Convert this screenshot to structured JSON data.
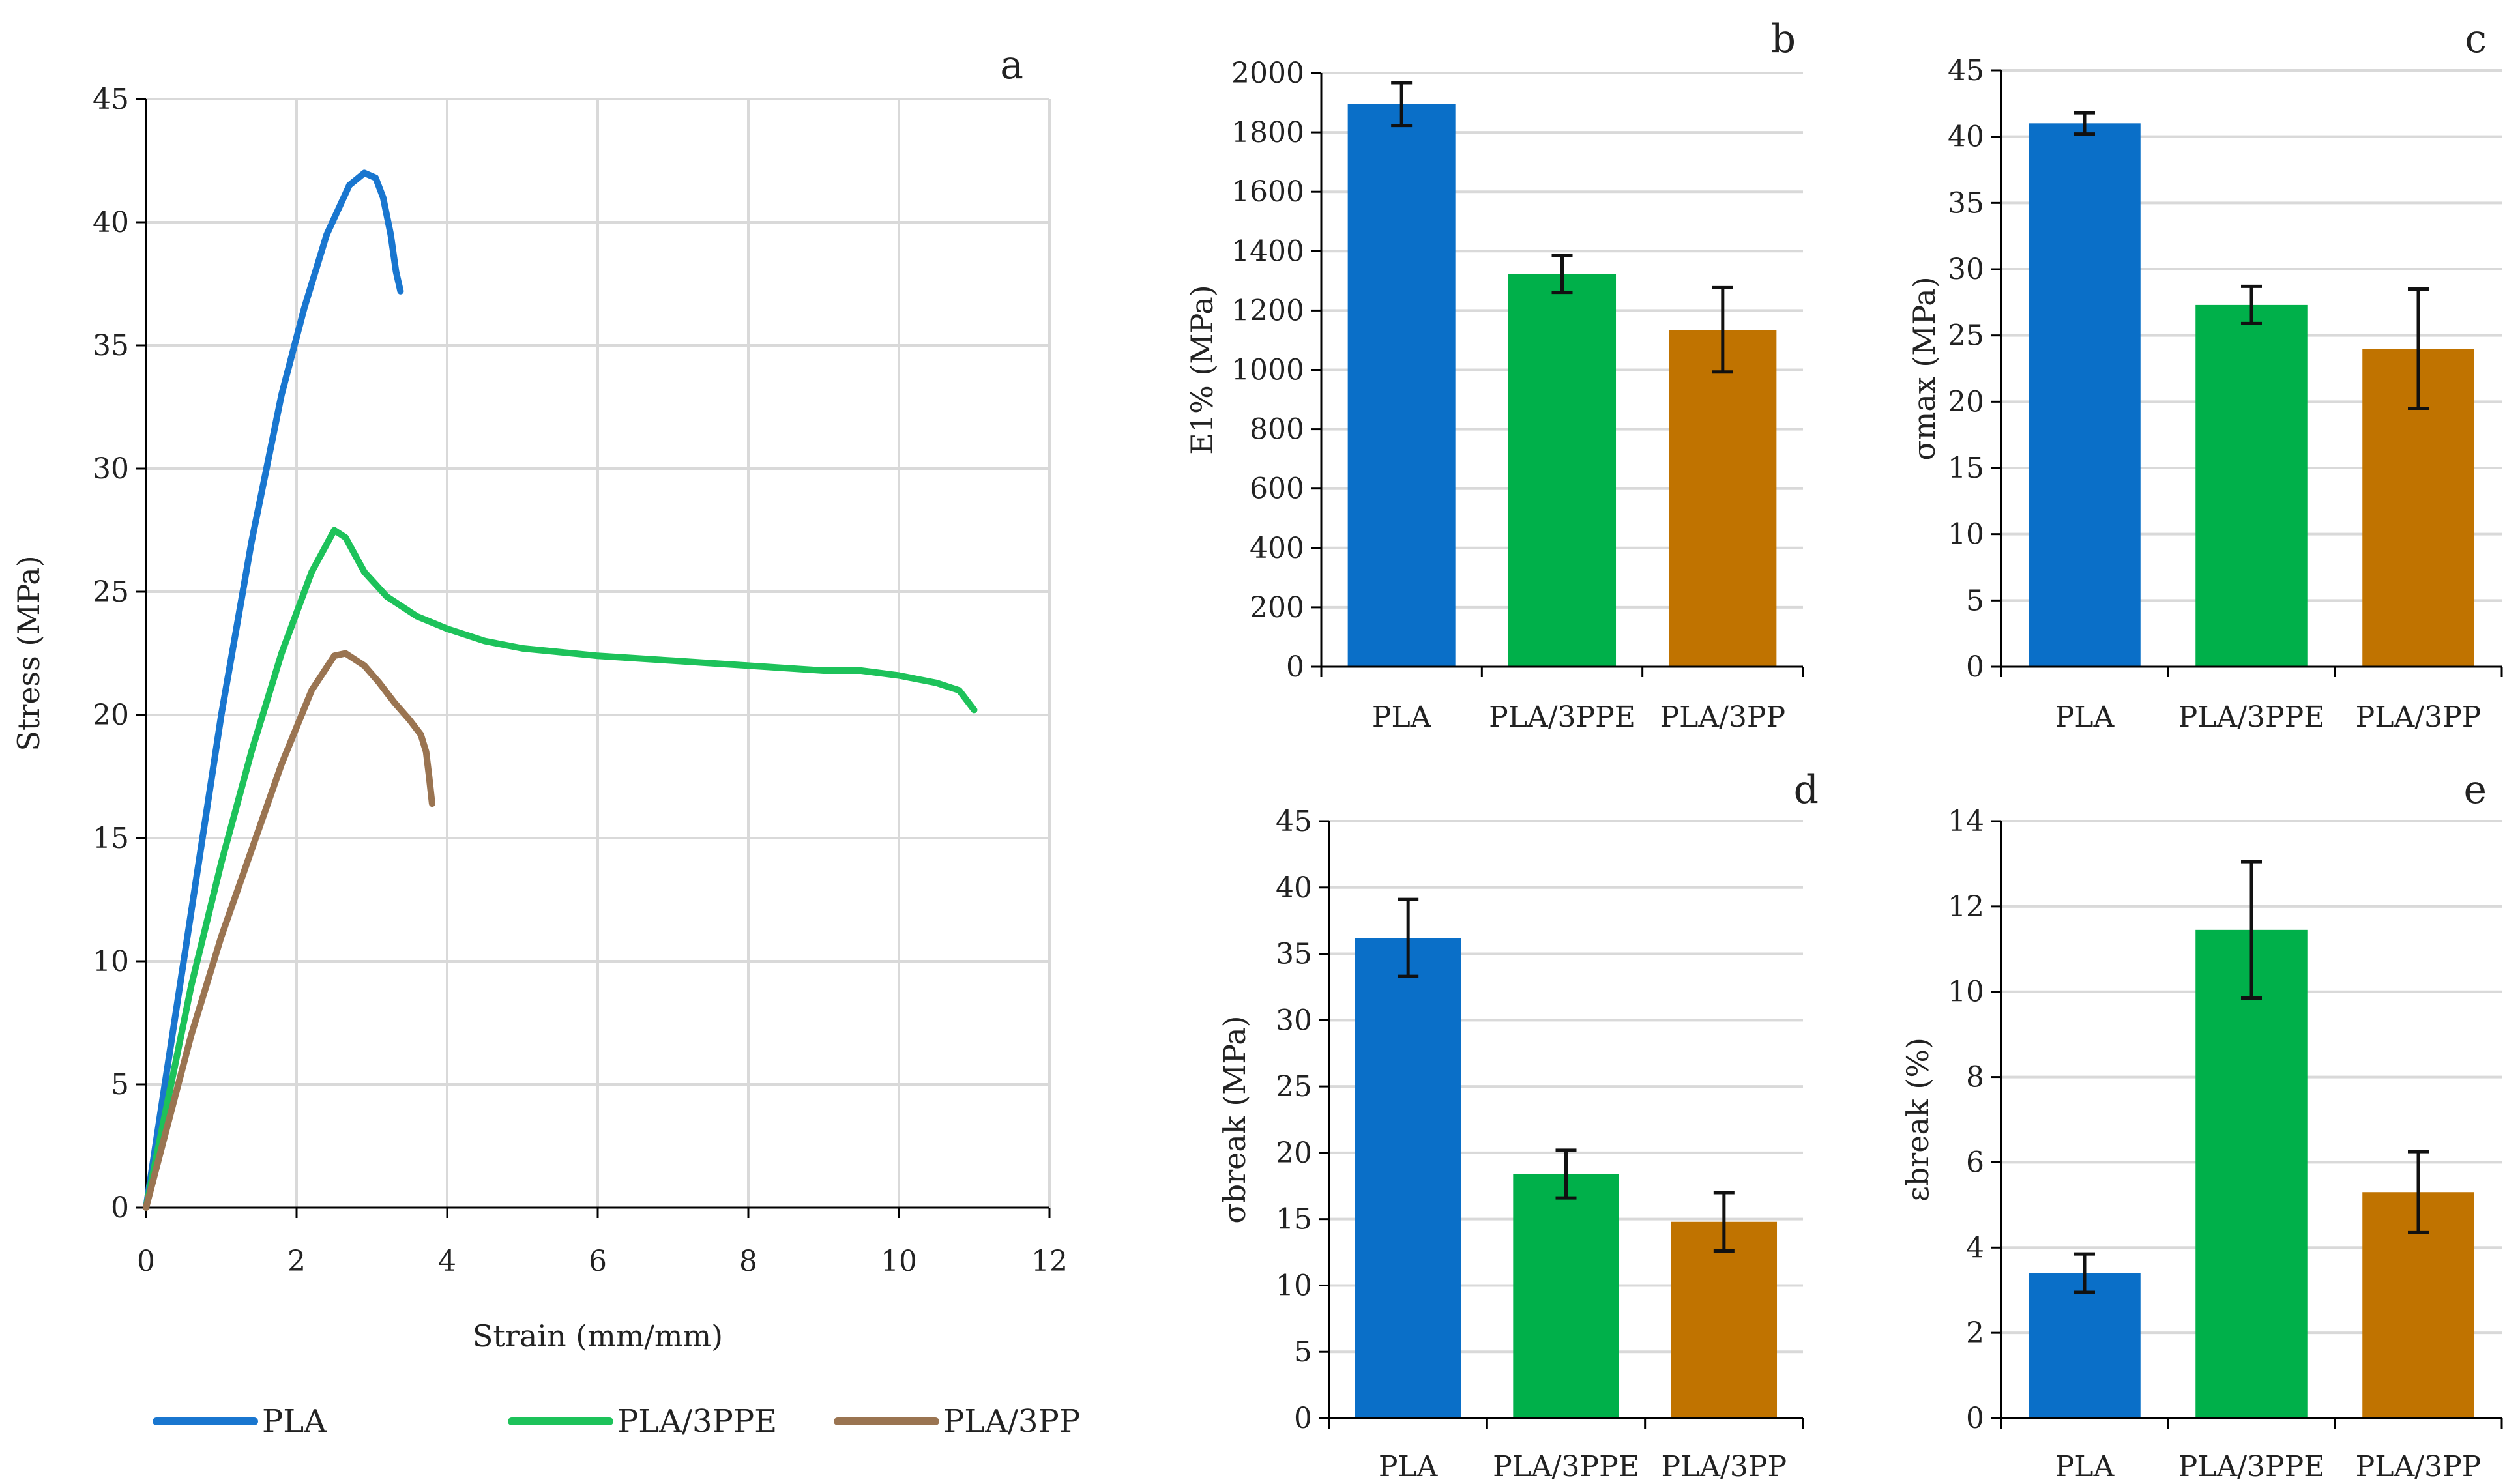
{
  "colors": {
    "pla": "#0A6FC8",
    "pla3ppe": "#00B04A",
    "pla3pp": "#C07300",
    "pla_curve": "#1976CF",
    "pla3ppe_curve": "#1DC25A",
    "pla3pp_curve": "#9A7451",
    "grid": "#D9D9D9",
    "axis": "#000000"
  },
  "chart_data": [
    {
      "panel": "a",
      "type": "line",
      "xlabel": "Strain (mm/mm)",
      "ylabel": "Stress (MPa)",
      "xlim": [
        0,
        12
      ],
      "ylim": [
        0,
        45
      ],
      "xticks": [
        "0",
        "2",
        "4",
        "6",
        "8",
        "10",
        "12"
      ],
      "yticks": [
        "0",
        "5",
        "10",
        "15",
        "20",
        "25",
        "30",
        "35",
        "40",
        "45"
      ],
      "grid": true,
      "legend_position": "bottom",
      "series": [
        {
          "name": "PLA",
          "color_key": "pla_curve",
          "x": [
            0,
            0.3,
            0.6,
            1.0,
            1.4,
            1.8,
            2.1,
            2.4,
            2.7,
            2.9,
            3.05,
            3.15,
            3.25,
            3.32,
            3.38
          ],
          "y": [
            0,
            6,
            12,
            20,
            27,
            33,
            36.5,
            39.5,
            41.5,
            42,
            41.8,
            41,
            39.5,
            38,
            37.2
          ]
        },
        {
          "name": "PLA/3PPE",
          "color_key": "pla3ppe_curve",
          "x": [
            0,
            0.3,
            0.6,
            1.0,
            1.4,
            1.8,
            2.2,
            2.5,
            2.65,
            2.9,
            3.2,
            3.6,
            4.0,
            4.5,
            5.0,
            6.0,
            7.0,
            8.0,
            9.0,
            9.5,
            10.0,
            10.5,
            10.8,
            11.0
          ],
          "y": [
            0,
            4.5,
            9,
            14,
            18.5,
            22.5,
            25.8,
            27.5,
            27.2,
            25.8,
            24.8,
            24.0,
            23.5,
            23.0,
            22.7,
            22.4,
            22.2,
            22.0,
            21.8,
            21.8,
            21.6,
            21.3,
            21.0,
            20.2
          ]
        },
        {
          "name": "PLA/3PP",
          "color_key": "pla3pp_curve",
          "x": [
            0,
            0.3,
            0.6,
            1.0,
            1.4,
            1.8,
            2.2,
            2.5,
            2.65,
            2.9,
            3.1,
            3.3,
            3.5,
            3.65,
            3.72,
            3.76,
            3.8
          ],
          "y": [
            0,
            3.5,
            7,
            11,
            14.5,
            18,
            21,
            22.4,
            22.5,
            22.0,
            21.3,
            20.5,
            19.8,
            19.2,
            18.5,
            17.5,
            16.4
          ]
        }
      ]
    },
    {
      "panel": "b",
      "type": "bar",
      "ylabel": "E1% (MPa)",
      "categories": [
        "PLA",
        "PLA/3PPE",
        "PLA/3PP"
      ],
      "values": [
        1895,
        1323,
        1135
      ],
      "errors": [
        72,
        62,
        142
      ],
      "color_keys": [
        "pla",
        "pla3ppe",
        "pla3pp"
      ],
      "ylim": [
        0,
        2000
      ],
      "yticks": [
        "0",
        "200",
        "400",
        "600",
        "800",
        "1000",
        "1200",
        "1400",
        "1600",
        "1800",
        "2000"
      ],
      "grid": true
    },
    {
      "panel": "c",
      "type": "bar",
      "ylabel": "σmax (MPa)",
      "categories": [
        "PLA",
        "PLA/3PPE",
        "PLA/3PP"
      ],
      "values": [
        41.0,
        27.3,
        24.0
      ],
      "errors": [
        0.8,
        1.4,
        4.5
      ],
      "color_keys": [
        "pla",
        "pla3ppe",
        "pla3pp"
      ],
      "ylim": [
        0,
        45
      ],
      "yticks": [
        "0",
        "5",
        "10",
        "15",
        "20",
        "25",
        "30",
        "35",
        "40",
        "45"
      ],
      "grid": true
    },
    {
      "panel": "d",
      "type": "bar",
      "ylabel": "σbreak (MPa)",
      "categories": [
        "PLA",
        "PLA/3PPE",
        "PLA/3PP"
      ],
      "values": [
        36.2,
        18.4,
        14.8
      ],
      "errors": [
        2.9,
        1.8,
        2.2
      ],
      "color_keys": [
        "pla",
        "pla3ppe",
        "pla3pp"
      ],
      "ylim": [
        0,
        45
      ],
      "yticks": [
        "0",
        "5",
        "10",
        "15",
        "20",
        "25",
        "30",
        "35",
        "40",
        "45"
      ],
      "grid": true
    },
    {
      "panel": "e",
      "type": "bar",
      "ylabel": "εbreak (%)",
      "categories": [
        "PLA",
        "PLA/3PPE",
        "PLA/3PP"
      ],
      "values": [
        3.4,
        11.45,
        5.3
      ],
      "errors": [
        0.45,
        1.6,
        0.95
      ],
      "color_keys": [
        "pla",
        "pla3ppe",
        "pla3pp"
      ],
      "ylim": [
        0,
        14
      ],
      "yticks": [
        "0",
        "2",
        "4",
        "6",
        "8",
        "10",
        "12",
        "14"
      ],
      "grid": true
    }
  ]
}
